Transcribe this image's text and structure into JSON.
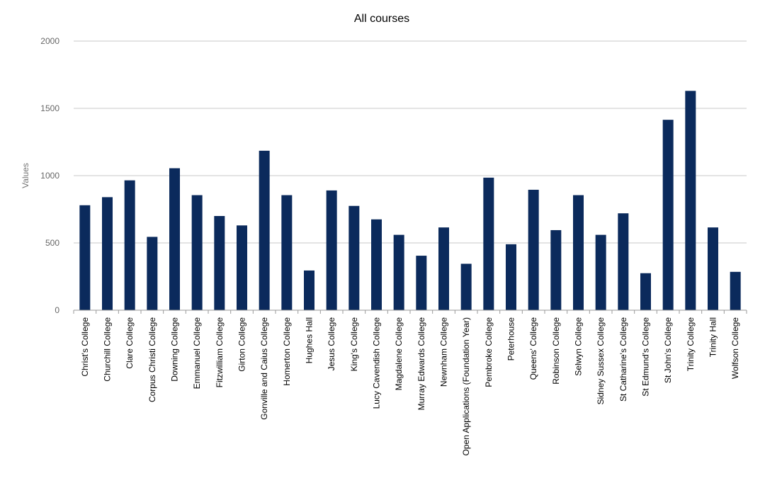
{
  "chart_data": {
    "type": "bar",
    "title": "All courses",
    "xlabel": "",
    "ylabel": "Values",
    "ylim": [
      0,
      2000
    ],
    "yticks": [
      0,
      500,
      1000,
      1500,
      2000
    ],
    "grid": true,
    "colors": {
      "bar": "#0b2a5c",
      "grid": "#c8c8c8",
      "axis": "#999999"
    },
    "categories": [
      "Christ's College",
      "Churchill College",
      "Clare College",
      "Corpus Christi College",
      "Downing College",
      "Emmanuel College",
      "Fitzwilliam College",
      "Girton College",
      "Gonville and Caius College",
      "Homerton College",
      "Hughes Hall",
      "Jesus College",
      "King's College",
      "Lucy Cavendish College",
      "Magdalene College",
      "Murray Edwards College",
      "Newnham College",
      "Open Applications (Foundation Year)",
      "Pembroke College",
      "Peterhouse",
      "Queens' College",
      "Robinson College",
      "Selwyn College",
      "Sidney Sussex College",
      "St Catharine's College",
      "St Edmund's College",
      "St John's College",
      "Trinity College",
      "Trinity Hall",
      "Wolfson College"
    ],
    "values": [
      780,
      840,
      965,
      545,
      1055,
      855,
      700,
      630,
      1185,
      855,
      295,
      890,
      775,
      675,
      560,
      405,
      615,
      345,
      985,
      490,
      895,
      595,
      855,
      560,
      720,
      275,
      1415,
      1630,
      615,
      285
    ]
  }
}
